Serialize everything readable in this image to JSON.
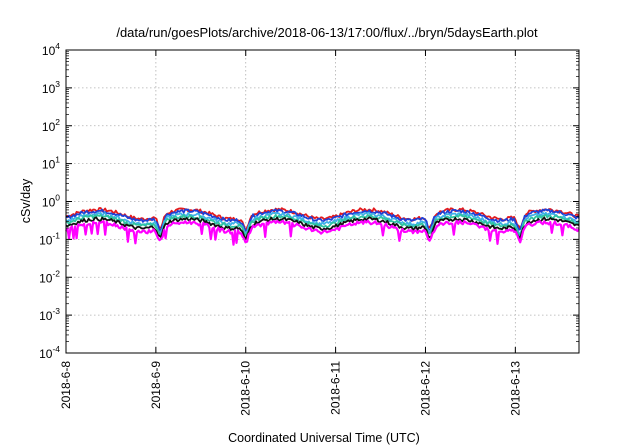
{
  "chart_data": {
    "type": "line",
    "title": "/data/run/goesPlots/archive/2018-06-13/17:00/flux/../bryn/5daysEarth.plot",
    "xlabel": "Coordinated Universal Time (UTC)",
    "ylabel": "cSv/day",
    "yscale": "log",
    "ylim_exponents": [
      -4,
      4
    ],
    "y_ticks": [
      {
        "base": "10",
        "exp": "-4"
      },
      {
        "base": "10",
        "exp": "-3"
      },
      {
        "base": "10",
        "exp": "-2"
      },
      {
        "base": "10",
        "exp": "-1"
      },
      {
        "base": "10",
        "exp": "0"
      },
      {
        "base": "10",
        "exp": "1"
      },
      {
        "base": "10",
        "exp": "2"
      },
      {
        "base": "10",
        "exp": "3"
      },
      {
        "base": "10",
        "exp": "4"
      }
    ],
    "xlim": [
      "2018-06-08 00:00",
      "2018-06-13 17:00"
    ],
    "x_ticks": [
      "2018-6-8",
      "2018-6-9",
      "2018-6-10",
      "2018-6-11",
      "2018-6-12",
      "2018-6-13"
    ],
    "grid": true,
    "legend": "none",
    "dip_days": [
      1.05,
      2.0,
      4.05,
      5.05
    ],
    "series": [
      {
        "color": "#e41a1c",
        "level": 0.48
      },
      {
        "color": "#1f3fd6",
        "level": 0.44
      },
      {
        "color": "#3fb0e8",
        "level": 0.36
      },
      {
        "color": "#2ec4a0",
        "level": 0.32
      },
      {
        "color": "#111111",
        "level": 0.27
      },
      {
        "color": "#ff00ff",
        "level": 0.22
      }
    ]
  }
}
